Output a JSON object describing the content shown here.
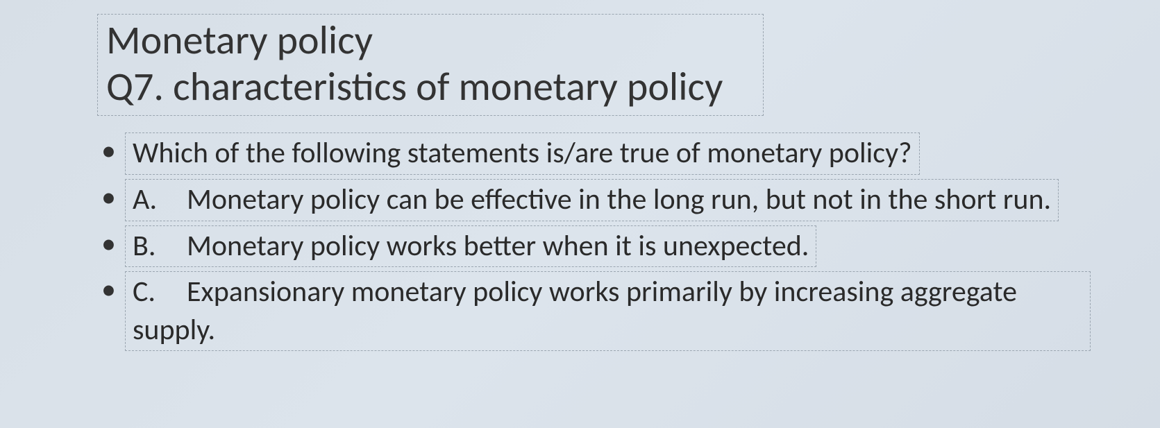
{
  "slide": {
    "title_line1": "Monetary policy",
    "title_line2": "Q7. characteristics of monetary policy",
    "question": "Which of the following statements is/are true of monetary policy?",
    "options": [
      {
        "label": "A.",
        "text": "Monetary policy can be effective in the long run, but not in the short run."
      },
      {
        "label": "B.",
        "text": "Monetary policy works better when it is unexpected."
      },
      {
        "label": "C.",
        "text": "Expansionary monetary policy works primarily by increasing aggregate supply."
      }
    ],
    "colors": {
      "background_tint": "#dce4ec",
      "dash_border": "#9aa5b0",
      "text": "#2a2a2a"
    },
    "typography": {
      "title_fontsize_pt": 44,
      "body_fontsize_pt": 32,
      "font_family": "Calibri"
    }
  }
}
